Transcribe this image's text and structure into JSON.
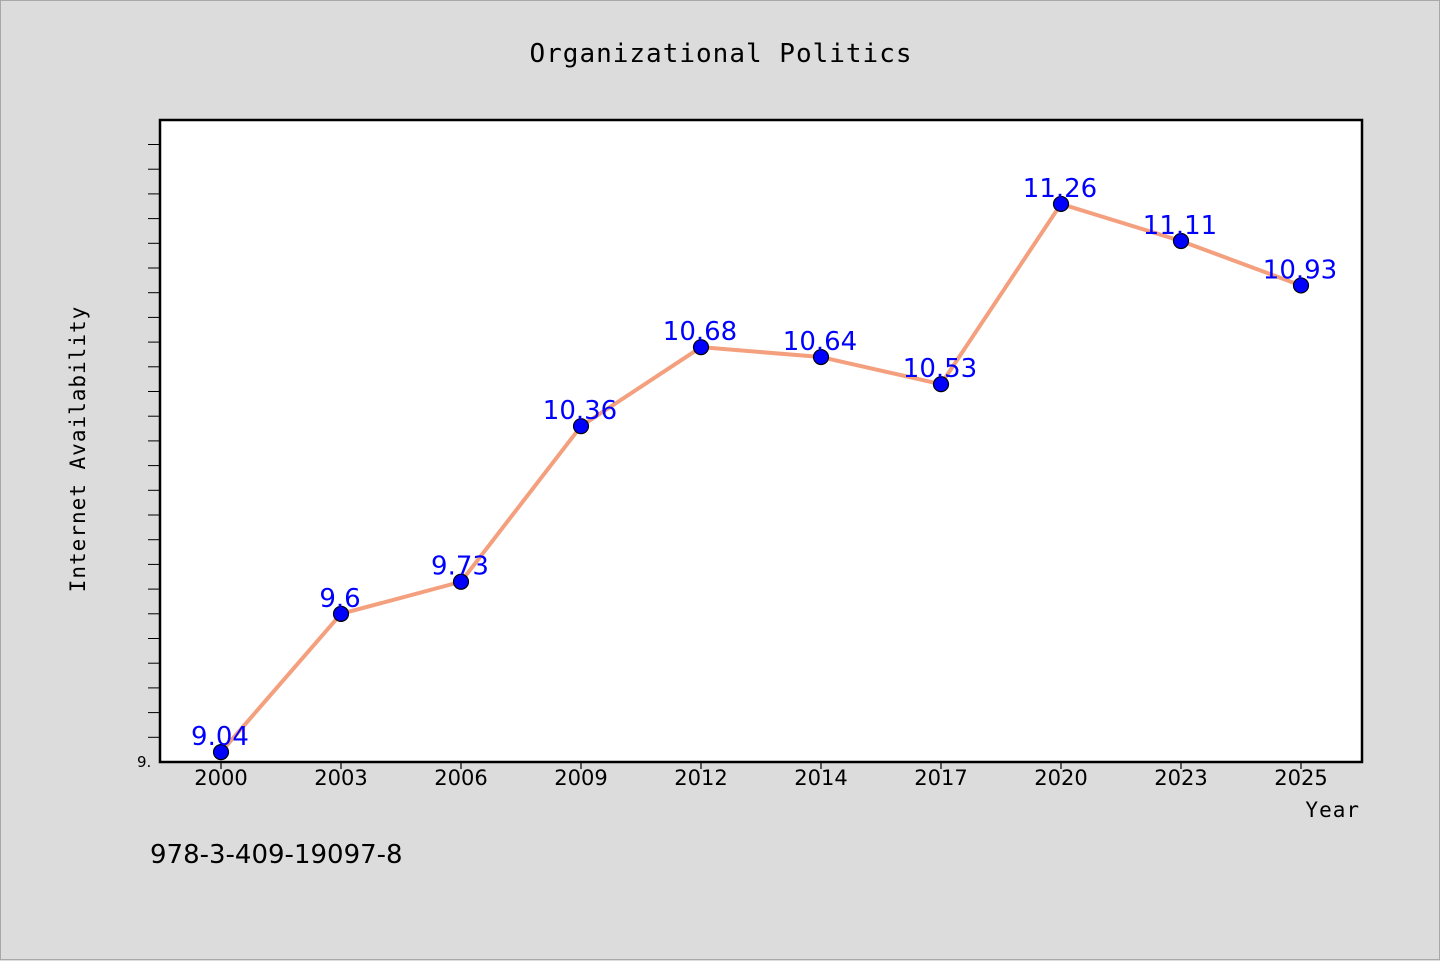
{
  "chart_data": {
    "type": "line",
    "title": "Organizational Politics",
    "xlabel": "Year",
    "ylabel": "Internet Availability",
    "categories": [
      "2000",
      "2003",
      "2006",
      "2009",
      "2012",
      "2014",
      "2017",
      "2020",
      "2023",
      "2025"
    ],
    "series": [
      {
        "values": [
          9.04,
          9.6,
          9.73,
          10.36,
          10.68,
          10.64,
          10.53,
          11.26,
          11.11,
          10.93
        ],
        "labels": [
          "9.04",
          "9.6",
          "9.73",
          "10.36",
          "10.68",
          "10.64",
          "10.53",
          "11.26",
          "11.11",
          "10.93"
        ],
        "line_color": "#f4a07e",
        "marker_color": "#0000ff"
      }
    ],
    "ylim": [
      9.0,
      11.6
    ],
    "y_tick_label": "9.",
    "grid": false,
    "plot_background": "#ffffff",
    "figure_background": "#dcdcdc"
  },
  "footer": {
    "isbn": "978-3-409-19097-8"
  }
}
